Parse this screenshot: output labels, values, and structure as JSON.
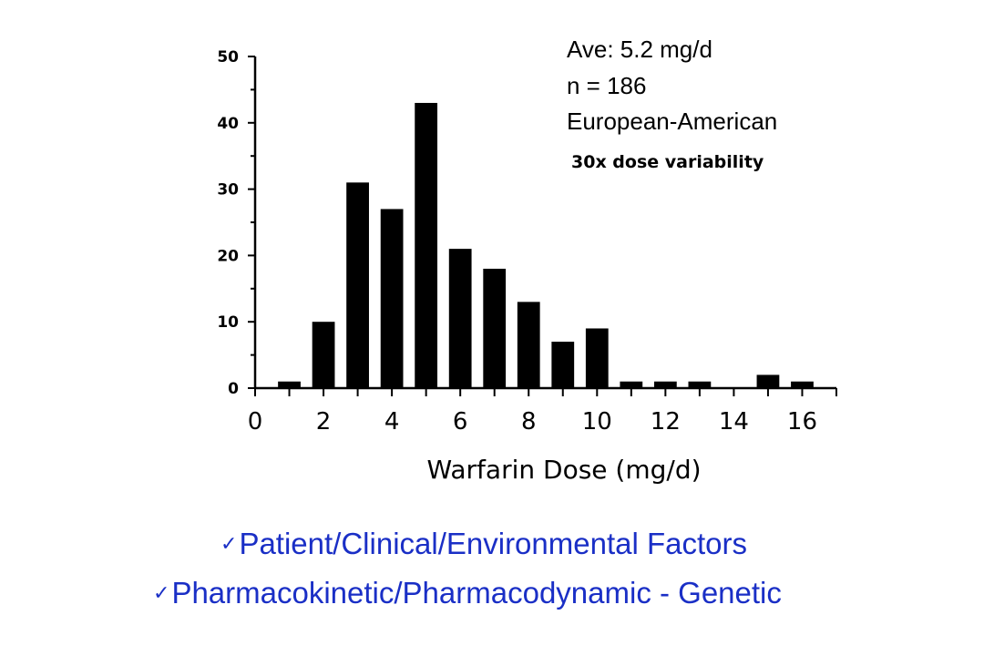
{
  "chart_data": {
    "type": "bar",
    "x": [
      1,
      2,
      3,
      4,
      5,
      6,
      7,
      8,
      9,
      10,
      11,
      12,
      13,
      14,
      15,
      16
    ],
    "values": [
      1,
      10,
      31,
      27,
      43,
      21,
      18,
      13,
      7,
      9,
      1,
      1,
      1,
      0,
      2,
      1
    ],
    "title": "",
    "xlabel": "Warfarin Dose (mg/d)",
    "ylabel": "",
    "xlim": [
      0,
      17
    ],
    "ylim": [
      0,
      50
    ],
    "x_ticks": [
      "0",
      "2",
      "4",
      "6",
      "8",
      "10",
      "12",
      "14",
      "16"
    ],
    "y_ticks": [
      "0",
      "10",
      "20",
      "30",
      "40",
      "50"
    ],
    "grid": false,
    "bar_color": "#000000",
    "annotations": [
      "Ave:  5.2 mg/d",
      "n = 186",
      "European-American",
      "30x dose variability"
    ]
  },
  "bullets": [
    {
      "check": "✓",
      "text": "Patient/Clinical/Environmental  Factors"
    },
    {
      "check": "✓",
      "text": "Pharmacokinetic/Pharmacodynamic  - Genetic"
    }
  ],
  "colors": {
    "bullet_text": "#1a2fc6"
  }
}
